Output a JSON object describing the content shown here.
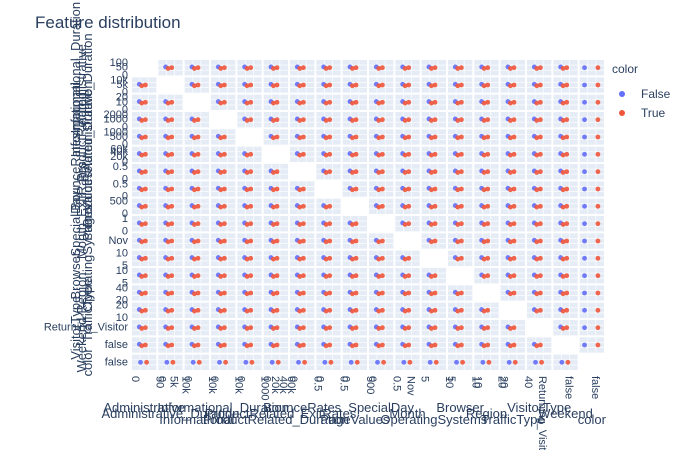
{
  "chart_data": {
    "type": "scatter",
    "subtype": "scatter-matrix",
    "title": "Feature distribution",
    "legend": {
      "title": "color",
      "placement": "top-right",
      "entries": [
        {
          "name": "False",
          "color": "#636efa"
        },
        {
          "name": "True",
          "color": "#ef553b"
        }
      ]
    },
    "dimensions": [
      "Administrative",
      "Administrative_Duration",
      "Informational",
      "Informational_Duration",
      "ProductRelated",
      "ProductRelated_Duration",
      "BounceRates",
      "ExitRates",
      "PageValues",
      "SpecialDay",
      "Month",
      "OperatingSystems",
      "Browser",
      "Region",
      "TrafficType",
      "VisitorType",
      "Weekend",
      "color"
    ],
    "bottom_axis_titles": [
      "Administrative",
      "Administrative_Duration",
      "Informational",
      "Informational_Duration",
      "ProductRelated",
      "ProductRelated_Duration",
      "BounceRates",
      "ExitRates",
      "PageValues",
      "SpecialDay",
      "Month",
      "OperatingSystems",
      "Browser",
      "Region",
      "TrafficType",
      "VisitorType",
      "Weekend",
      "color"
    ],
    "left_axis_titles": [
      "Informational_Duration",
      "Administrative",
      "Administrative_Duration",
      "Informational",
      "ProductRelated",
      "ProductRelated_Duration",
      "BounceRates",
      "ExitRates",
      "PageValues",
      "SpecialDay",
      "Month",
      "OperatingSystems",
      "Browser",
      "Region",
      "TrafficType",
      "VisitorType",
      "Weekend",
      "color"
    ],
    "x_tick_labels": [
      [
        "0",
        "50"
      ],
      [
        "0",
        "5k",
        "10k"
      ],
      [
        "0",
        "10k"
      ],
      [
        "0",
        "10k"
      ],
      [
        "0",
        "1000"
      ],
      [
        "0",
        "20k",
        "40k",
        "60k"
      ],
      [
        "0",
        "0.5"
      ],
      [
        "0",
        "0.5"
      ],
      [
        "0",
        "500"
      ],
      [
        "0",
        "0.5"
      ],
      [
        "Nov"
      ],
      [
        "5",
        "10"
      ],
      [
        "5",
        "10"
      ],
      [
        "10",
        "20"
      ],
      [
        "20",
        "40"
      ],
      [
        "Returning_Visitor"
      ],
      [
        "false"
      ],
      [
        "false"
      ]
    ],
    "y_tick_labels": [
      [
        "0",
        "50",
        "100"
      ],
      [
        "0",
        "5k",
        "10k"
      ],
      [
        "0",
        "10",
        "20"
      ],
      [
        "0",
        "1000",
        "2000"
      ],
      [
        "0",
        "500",
        "1000"
      ],
      [
        "0",
        "20k",
        "40k",
        "60k"
      ],
      [
        "0",
        "0.5"
      ],
      [
        "0",
        "0.5"
      ],
      [
        "0",
        "500"
      ],
      [
        "0",
        "1"
      ],
      [
        "Nov"
      ],
      [
        "5",
        "10"
      ],
      [
        "5",
        "10"
      ],
      [
        "20",
        "40"
      ],
      [
        "10",
        "20"
      ],
      [
        "Returning_Visitor"
      ],
      [
        "false"
      ],
      [
        "false"
      ]
    ],
    "series": [
      {
        "name": "False",
        "color": "#636efa",
        "sample": {
          "Administrative": [
            0,
            2,
            4
          ],
          "ProductRelated": [
            10,
            45,
            160
          ],
          "BounceRates": [
            0.0,
            0.02,
            0.2
          ],
          "ExitRates": [
            0.02,
            0.05,
            0.2
          ],
          "PageValues": [
            0,
            0,
            12
          ]
        }
      },
      {
        "name": "True",
        "color": "#ef553b",
        "sample": {
          "Administrative": [
            1,
            4,
            7
          ],
          "ProductRelated": [
            20,
            60,
            200
          ],
          "BounceRates": [
            0.0,
            0.01,
            0.05
          ],
          "ExitRates": [
            0.01,
            0.03,
            0.08
          ],
          "PageValues": [
            10,
            30,
            80
          ]
        }
      }
    ],
    "grid": true
  }
}
